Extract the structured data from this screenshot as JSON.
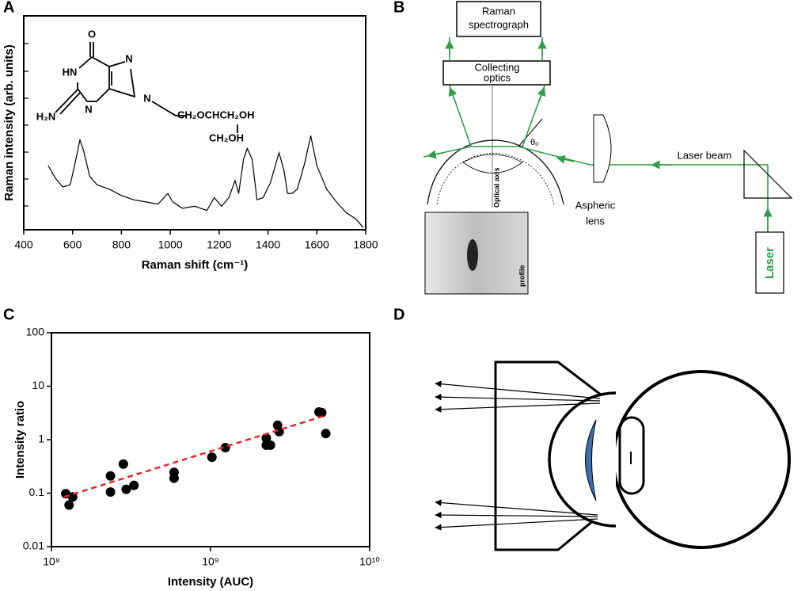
{
  "panels": {
    "a": "A",
    "b": "B",
    "c": "C",
    "d": "D"
  },
  "structure": {
    "labels": [
      "O",
      "HN",
      "N",
      "N",
      "N",
      "H₂N",
      "CH₂OCHCH₂OH",
      "CH₂OH"
    ]
  },
  "diagram_b": {
    "spectrograph": [
      "Raman",
      "spectrograph"
    ],
    "collecting_optics": [
      "Collecting",
      "optics"
    ],
    "angle": "θₒ",
    "optical_axis": "Optical axis",
    "laser_beam": "Laser beam",
    "aspheric_lens": [
      "Aspheric",
      "lens"
    ],
    "laser": "Laser",
    "photo_label": "profile"
  },
  "chart_data": [
    {
      "type": "line",
      "xlabel": "Raman shift (cm⁻¹)",
      "ylabel": "Raman intensity (arb. units)",
      "x": [
        500,
        530,
        560,
        590,
        610,
        630,
        645,
        670,
        700,
        750,
        800,
        850,
        900,
        950,
        990,
        1010,
        1050,
        1100,
        1150,
        1180,
        1210,
        1240,
        1265,
        1280,
        1300,
        1315,
        1335,
        1355,
        1380,
        1410,
        1445,
        1465,
        1480,
        1500,
        1520,
        1550,
        1575,
        1600,
        1640,
        1680,
        1720,
        1760,
        1790
      ],
      "values": [
        30,
        24,
        20,
        21,
        31,
        42,
        37,
        25,
        21,
        19,
        16,
        14,
        13,
        12,
        17,
        13,
        10,
        11,
        9,
        15,
        11,
        15,
        23,
        17,
        33,
        38,
        33,
        14,
        15,
        22,
        36,
        28,
        17,
        17,
        19,
        31,
        44,
        30,
        19,
        13,
        8,
        5,
        1
      ],
      "color": "#000000",
      "xlim": [
        400,
        1800
      ],
      "xticks": [
        400,
        600,
        800,
        1000,
        1200,
        1400,
        1600,
        1800
      ],
      "ylim": [
        0,
        100
      ]
    },
    {
      "type": "scatter",
      "xlabel": "Intensity (AUC)",
      "ylabel": "Intensity ratio",
      "xscale": "log",
      "yscale": "log",
      "xlim": [
        100000000,
        10000000000
      ],
      "ylim": [
        0.01,
        100
      ],
      "xticks": [
        {
          "value": 100000000,
          "label": "10⁸"
        },
        {
          "value": 1000000000,
          "label": "10⁹"
        },
        {
          "value": 10000000000,
          "label": "10¹⁰"
        }
      ],
      "yticks": [
        0.01,
        0.1,
        1,
        10,
        100
      ],
      "series": [
        {
          "color": "#000000",
          "x": [
            123000000,
            129000000,
            136000000,
            235000000,
            235000000,
            283000000,
            295000000,
            330000000,
            590000000,
            590000000,
            1020000000,
            1240000000,
            2240000000,
            2240000000,
            2380000000,
            2640000000,
            2700000000,
            4800000000,
            5000000000,
            5300000000
          ],
          "values": [
            0.098,
            0.06,
            0.085,
            0.21,
            0.105,
            0.35,
            0.118,
            0.14,
            0.245,
            0.19,
            0.47,
            0.71,
            1.07,
            0.79,
            0.79,
            1.86,
            1.41,
            3.3,
            3.2,
            1.3
          ]
        },
        {
          "type": "line",
          "color": "#e8262a",
          "dash": true,
          "x": [
            120000000,
            5200000000
          ],
          "values": [
            0.085,
            2.8
          ]
        }
      ]
    }
  ]
}
